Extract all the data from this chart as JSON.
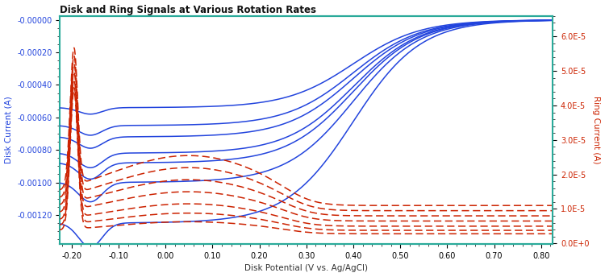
{
  "title": "Disk and Ring Signals at Various Rotation Rates",
  "xlabel": "Disk Potential (V vs. Ag/AgCl)",
  "ylabel_left": "Disk Current (A)",
  "ylabel_right": "Ring Current (A)",
  "xlim": [
    -0.225,
    0.825
  ],
  "ylim_left": [
    -0.00138,
    2.5e-05
  ],
  "ylim_right": [
    -2e-07,
    6.6e-05
  ],
  "disk_color": "#2244dd",
  "ring_color": "#cc2200",
  "bg_color": "#ffffff",
  "n_curves": 7,
  "disk_plateau_currents": [
    -0.00054,
    -0.00065,
    -0.00072,
    -0.00082,
    -0.00088,
    -0.001,
    -0.00125
  ],
  "disk_dip_extras": [
    4e-05,
    6e-05,
    7e-05,
    9e-05,
    0.0001,
    0.00012,
    0.00015
  ],
  "ring_plateau_currents": [
    2.8e-06,
    3.8e-06,
    5e-06,
    6.5e-06,
    8e-06,
    9.5e-06,
    1.1e-05
  ],
  "ring_hump_heights": [
    3.5e-06,
    5e-06,
    6.5e-06,
    8.5e-06,
    1.05e-05,
    1.25e-05,
    1.45e-05
  ],
  "spine_color": "#2aaa9a",
  "title_fontsize": 8.5,
  "axis_label_fontsize": 7.5,
  "tick_fontsize": 7
}
